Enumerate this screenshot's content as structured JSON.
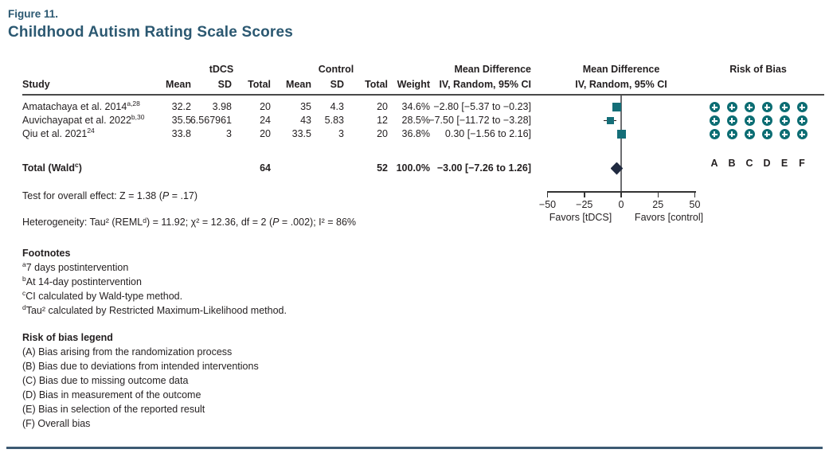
{
  "figure": {
    "label": "Figure 11.",
    "title": "Childhood Autism Rating Scale Scores"
  },
  "table": {
    "group_headers": {
      "tdcs": "tDCS",
      "control": "Control",
      "md_table": "Mean Difference",
      "md_plot": "Mean Difference",
      "rob": "Risk of Bias"
    },
    "columns": {
      "study": "Study",
      "mean": "Mean",
      "sd": "SD",
      "total": "Total",
      "weight": "Weight",
      "ci": "IV, Random, 95% CI",
      "rob_letters": [
        "A",
        "B",
        "C",
        "D",
        "E",
        "F"
      ]
    }
  },
  "studies": [
    {
      "name": "Amatachaya et al. 2014",
      "sup": "a,28",
      "tdcs_mean": "32.2",
      "tdcs_sd": "3.98",
      "tdcs_total": "20",
      "ctrl_mean": "35",
      "ctrl_sd": "4.3",
      "ctrl_total": "20",
      "weight": "34.6%",
      "md_ci": "−2.80 [−5.37 to −0.23]",
      "rob": [
        "low",
        "low",
        "low",
        "low",
        "low",
        "low"
      ]
    },
    {
      "name": "Auvichayapat et al. 2022",
      "sup": "b,30",
      "tdcs_mean": "35.5",
      "tdcs_sd": "6.567961",
      "tdcs_total": "24",
      "ctrl_mean": "43",
      "ctrl_sd": "5.83",
      "ctrl_total": "12",
      "weight": "28.5%",
      "md_ci": "−7.50 [−11.72 to −3.28]",
      "rob": [
        "low",
        "low",
        "low",
        "low",
        "low",
        "low"
      ]
    },
    {
      "name": "Qiu et al. 2021",
      "sup": "24",
      "tdcs_mean": "33.8",
      "tdcs_sd": "3",
      "tdcs_total": "20",
      "ctrl_mean": "33.5",
      "ctrl_sd": "3",
      "ctrl_total": "20",
      "weight": "36.8%",
      "md_ci": "0.30 [−1.56 to 2.16]",
      "rob": [
        "low",
        "low",
        "low",
        "low",
        "low",
        "low"
      ]
    }
  ],
  "total": {
    "label": "Total (Wald",
    "sup": "c",
    "close": ")",
    "tdcs_total": "64",
    "ctrl_total": "52",
    "weight": "100.0%",
    "md_ci": "−3.00 [−7.26 to 1.26]"
  },
  "stats": {
    "overall_pre": "Test for overall effect: Z = 1.38 (",
    "overall_p": "P",
    "overall_post": " = .17)",
    "het_pre": "Heterogeneity: Tau² (REMLᵈ) = 11.92; χ² = 12.36, df = 2 (",
    "het_p": "P",
    "het_post": " = .002); I² = 86%"
  },
  "axis": {
    "ticks": [
      "−50",
      "−25",
      "0",
      "25",
      "50"
    ],
    "left_label": "Favors [tDCS]",
    "right_label": "Favors [control]"
  },
  "footnotes": {
    "heading": "Footnotes",
    "items": [
      {
        "marker": "a",
        "text": "7 days postintervention"
      },
      {
        "marker": "b",
        "text": "At 14-day postintervention"
      },
      {
        "marker": "c",
        "text": "CI calculated by Wald-type method."
      },
      {
        "marker": "d",
        "text": "Tau² calculated by Restricted Maximum-Likelihood method."
      }
    ]
  },
  "rob_legend": {
    "heading": "Risk of bias legend",
    "items": [
      "(A) Bias arising from the randomization process",
      "(B) Bias due to deviations from intended interventions",
      "(C) Bias due to missing outcome data",
      "(D) Bias in measurement of the outcome",
      "(E) Bias in selection of the reported result",
      "(F) Overall bias"
    ]
  },
  "chart_data": {
    "type": "scatter",
    "subtype": "forest_plot",
    "title": "Childhood Autism Rating Scale Scores",
    "effect_measure": "Mean Difference, IV, Random, 95% CI",
    "x_axis": {
      "ticks": [
        -50,
        -25,
        0,
        25,
        50
      ],
      "range": [
        -50,
        50
      ],
      "label_left": "Favors [tDCS]",
      "label_right": "Favors [control]"
    },
    "studies": [
      {
        "name": "Amatachaya et al. 2014",
        "estimate": -2.8,
        "ci_low": -5.37,
        "ci_high": -0.23,
        "weight_pct": 34.6
      },
      {
        "name": "Auvichayapat et al. 2022",
        "estimate": -7.5,
        "ci_low": -11.72,
        "ci_high": -3.28,
        "weight_pct": 28.5
      },
      {
        "name": "Qiu et al. 2021",
        "estimate": 0.3,
        "ci_low": -1.56,
        "ci_high": 2.16,
        "weight_pct": 36.8
      }
    ],
    "total": {
      "label": "Total (Wald)",
      "estimate": -3.0,
      "ci_low": -7.26,
      "ci_high": 1.26,
      "weight_pct": 100.0
    },
    "overall_effect": {
      "Z": 1.38,
      "P": 0.17
    },
    "heterogeneity": {
      "tau2": 11.92,
      "chi2": 12.36,
      "df": 2,
      "P": 0.002,
      "I2_pct": 86
    }
  },
  "colors": {
    "accent_blue": "#2b5871",
    "marker_teal": "#146e78",
    "diamond_navy": "#202a40",
    "rob_low_teal": "#0c6d73",
    "bottom_rule_blue": "#3d5a73"
  }
}
